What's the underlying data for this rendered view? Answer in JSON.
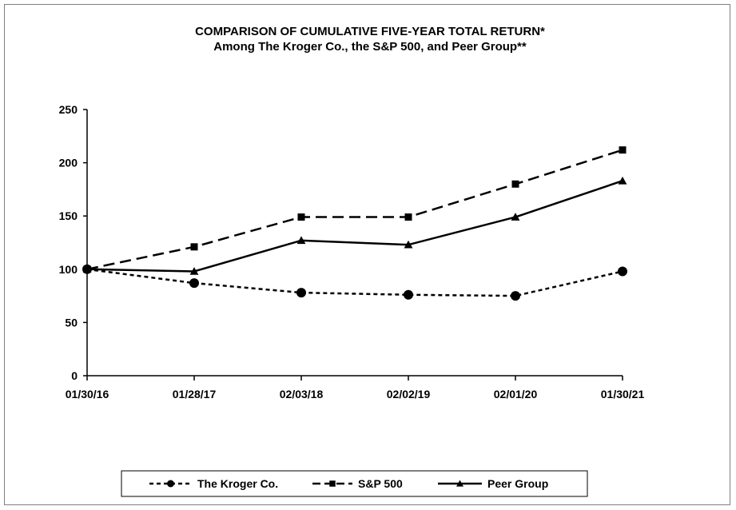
{
  "chart_data": {
    "type": "line",
    "title": "COMPARISON OF CUMULATIVE FIVE-YEAR TOTAL RETURN*",
    "subtitle": "Among The Kroger Co., the S&P 500, and Peer Group**",
    "xlabel": "",
    "ylabel": "",
    "categories": [
      "01/30/16",
      "01/28/17",
      "02/03/18",
      "02/02/19",
      "02/01/20",
      "01/30/21"
    ],
    "ylim": [
      0,
      250
    ],
    "yticks": [
      "0",
      "50",
      "100",
      "150",
      "200",
      "250"
    ],
    "grid": false,
    "legend_position": "bottom",
    "series": [
      {
        "name": "The Kroger Co.",
        "values": [
          100,
          87,
          78,
          76,
          75,
          98
        ],
        "marker": "circle",
        "dash": "short-dash"
      },
      {
        "name": "S&P 500",
        "values": [
          100,
          121,
          149,
          149,
          180,
          212
        ],
        "marker": "square",
        "dash": "long-dash"
      },
      {
        "name": "Peer Group",
        "values": [
          100,
          98,
          127,
          123,
          149,
          183
        ],
        "marker": "triangle",
        "dash": "solid"
      }
    ]
  }
}
